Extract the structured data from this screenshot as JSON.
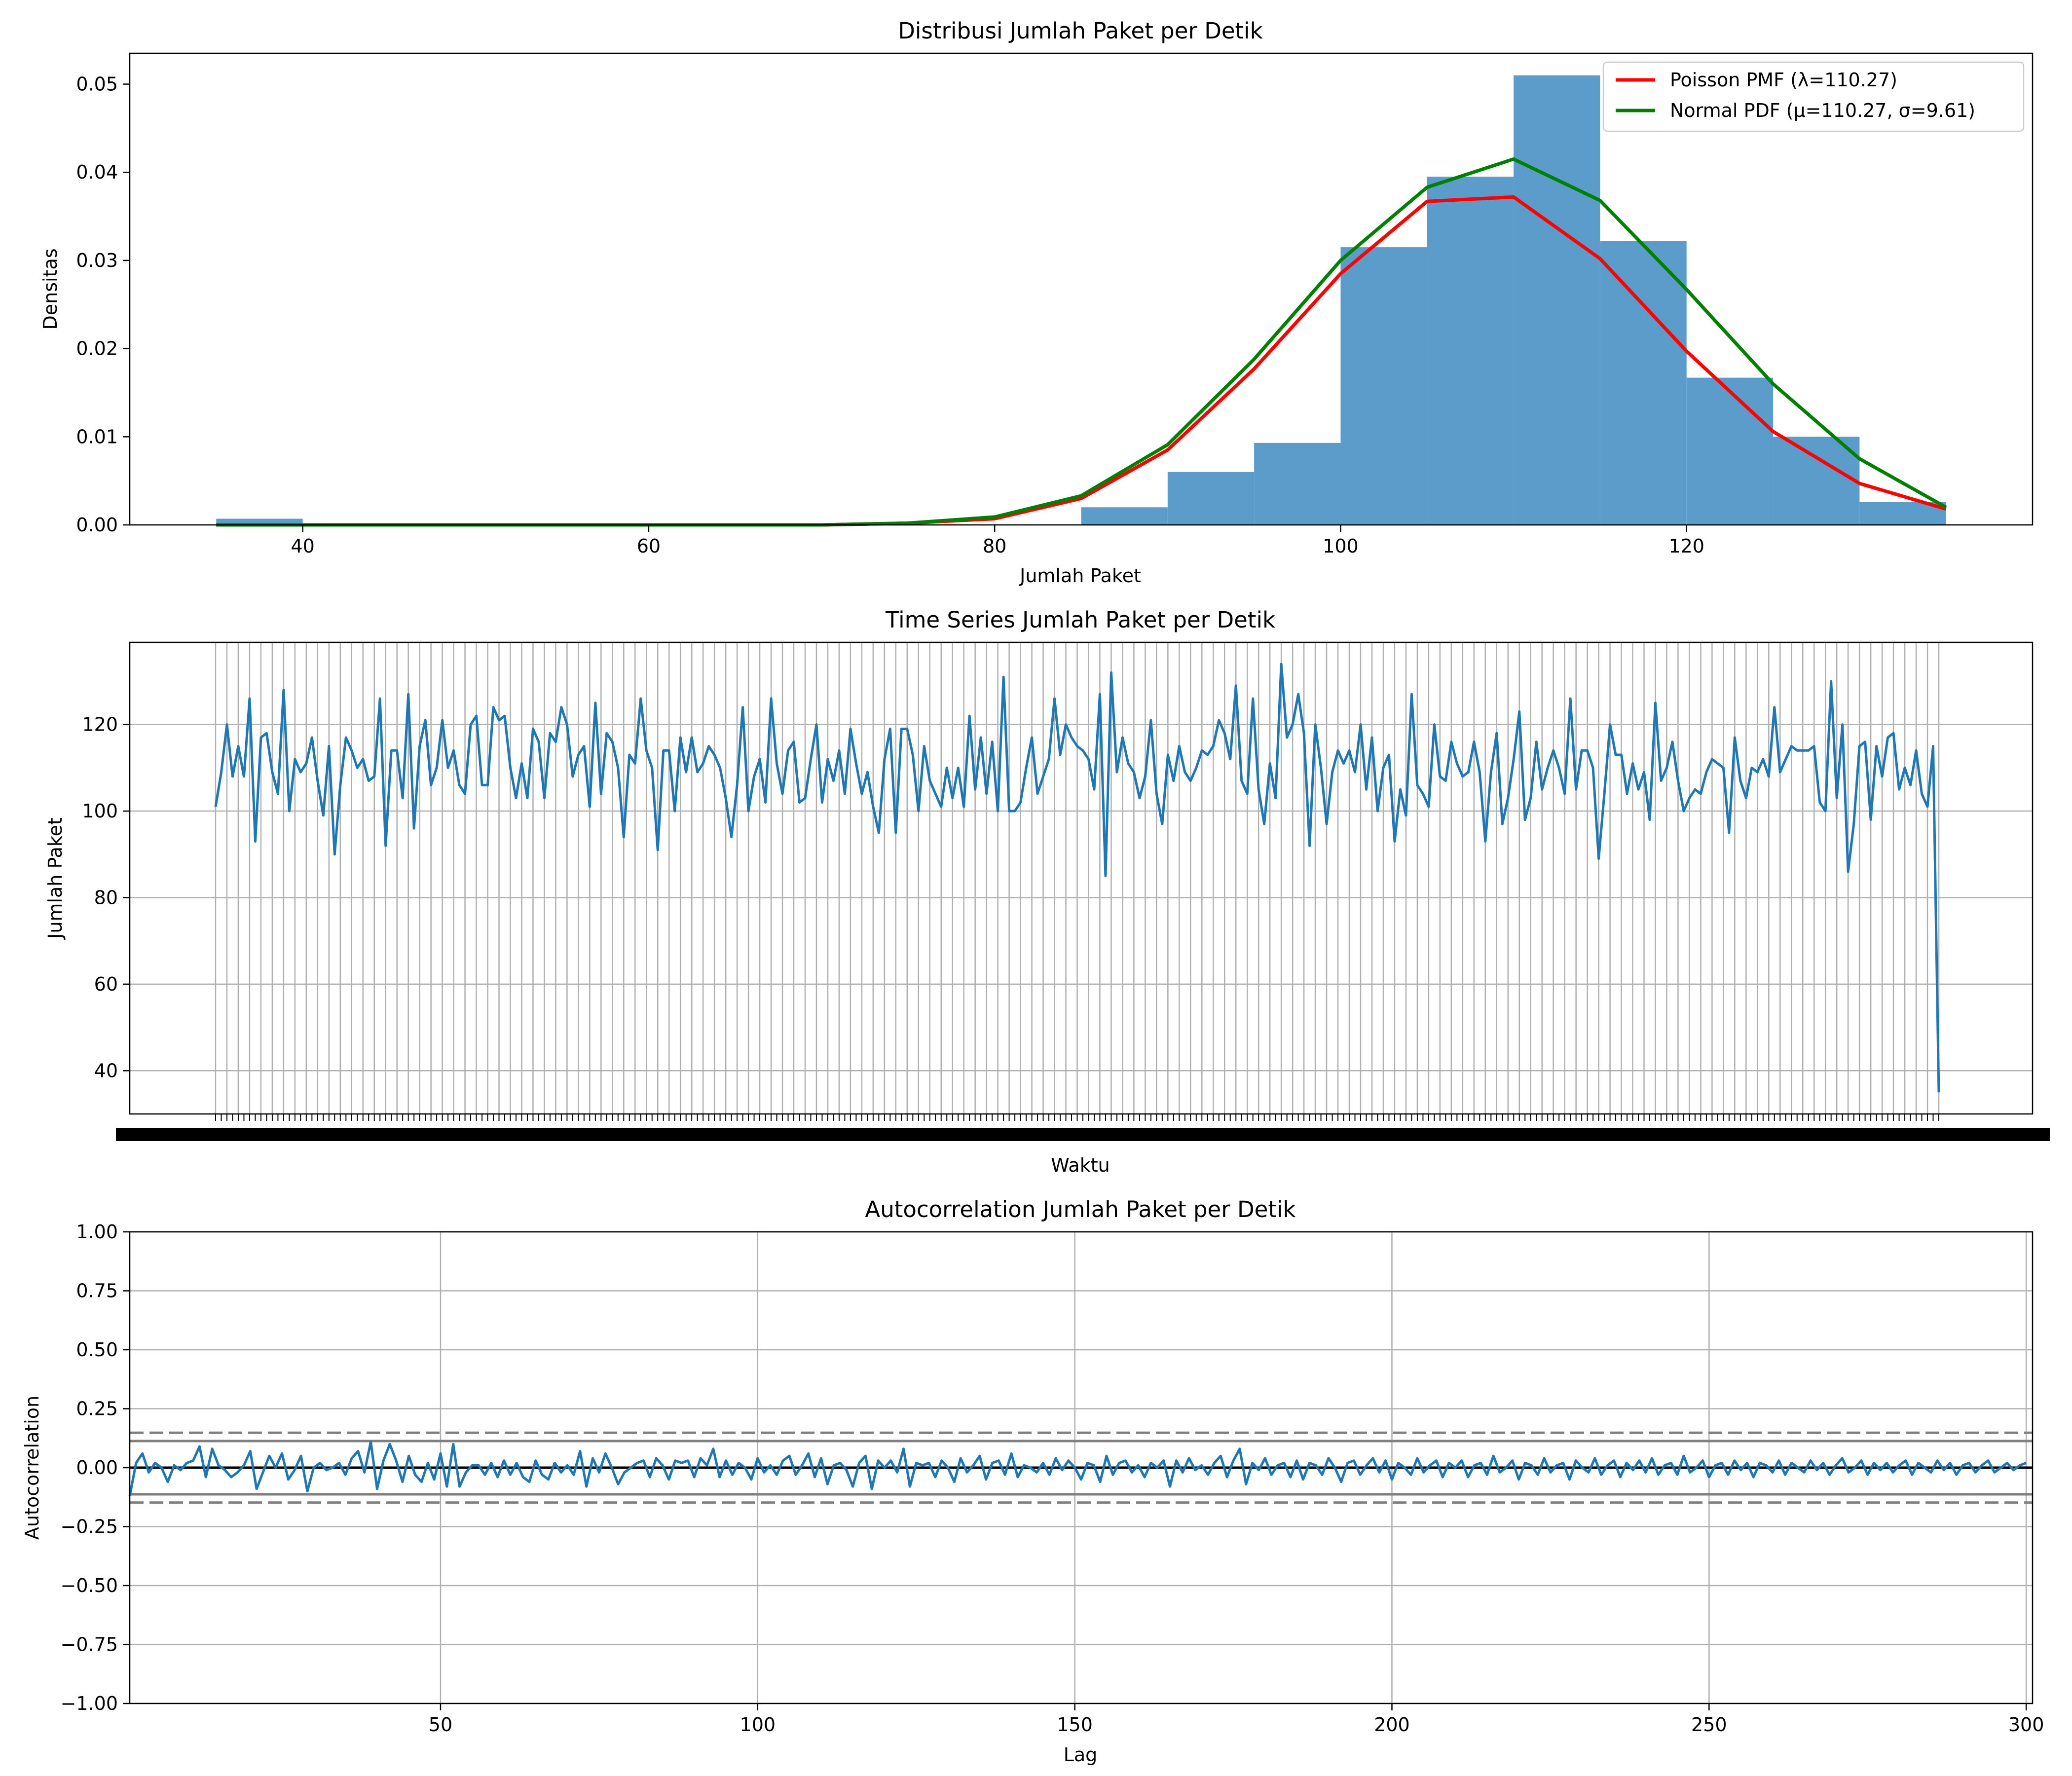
{
  "chart_data": [
    {
      "type": "bar",
      "title": "Distribusi Jumlah Paket per Detik",
      "xlabel": "Jumlah Paket",
      "ylabel": "Densitas",
      "xlim": [
        30,
        140
      ],
      "ylim": [
        0,
        0.0535
      ],
      "xticks": [
        40,
        60,
        80,
        100,
        120
      ],
      "yticks": [
        0.0,
        0.01,
        0.02,
        0.03,
        0.04,
        0.05
      ],
      "ytick_labels": [
        "0.00",
        "0.01",
        "0.02",
        "0.03",
        "0.04",
        "0.05"
      ],
      "histogram": {
        "bin_edges": [
          35,
          40,
          45,
          50,
          55,
          60,
          65,
          70,
          75,
          80,
          85,
          90,
          95,
          100,
          105,
          110,
          115,
          120,
          125,
          130,
          135
        ],
        "densities": [
          0.0007,
          0,
          0,
          0,
          0,
          0,
          0,
          0,
          0,
          0,
          0.002,
          0.006,
          0.0093,
          0.0315,
          0.0395,
          0.051,
          0.0322,
          0.0167,
          0.01,
          0.0026
        ],
        "color": "#5b9ccb"
      },
      "series": [
        {
          "name": "Poisson PMF (λ=110.27)",
          "color": "#ff0000",
          "x": [
            35,
            40,
            45,
            50,
            55,
            60,
            65,
            70,
            75,
            80,
            85,
            90,
            95,
            100,
            105,
            110,
            115,
            120,
            125,
            130,
            135
          ],
          "y": [
            0,
            0,
            0,
            0,
            0,
            0,
            0,
            0,
            0.0002,
            0.0007,
            0.003,
            0.0085,
            0.0177,
            0.0285,
            0.0367,
            0.0372,
            0.0302,
            0.0197,
            0.0106,
            0.0047,
            0.0018
          ]
        },
        {
          "name": "Normal PDF (μ=110.27, σ=9.61)",
          "color": "#008000",
          "x": [
            35,
            40,
            45,
            50,
            55,
            60,
            65,
            70,
            75,
            80,
            85,
            90,
            95,
            100,
            105,
            110,
            115,
            120,
            125,
            130,
            135
          ],
          "y": [
            0,
            0,
            0,
            0,
            0,
            0,
            0,
            0,
            0.0002,
            0.0009,
            0.0033,
            0.0091,
            0.0188,
            0.03,
            0.0383,
            0.0415,
            0.0368,
            0.0267,
            0.016,
            0.0075,
            0.002
          ]
        }
      ],
      "legend": "top-right",
      "grid": false
    },
    {
      "type": "line",
      "title": "Time Series Jumlah Paket per Detik",
      "xlabel": "Waktu",
      "ylabel": "Jumlah Paket",
      "ylim": [
        30,
        139
      ],
      "yticks": [
        40,
        60,
        80,
        100,
        120
      ],
      "grid": true,
      "n_points": 301,
      "color": "#1f77b4",
      "values": [
        101,
        109,
        120,
        108,
        115,
        108,
        126,
        93,
        117,
        118,
        109,
        104,
        128,
        100,
        112,
        109,
        111,
        117,
        107,
        99,
        115,
        90,
        106,
        117,
        114,
        110,
        112,
        107,
        108,
        126,
        92,
        114,
        114,
        103,
        127,
        96,
        115,
        121,
        106,
        110,
        121,
        110,
        114,
        106,
        104,
        120,
        122,
        106,
        106,
        124,
        121,
        122,
        110,
        103,
        111,
        103,
        119,
        116,
        103,
        118,
        116,
        124,
        120,
        108,
        113,
        115,
        101,
        125,
        104,
        118,
        116,
        110,
        94,
        113,
        111,
        126,
        114,
        110,
        91,
        114,
        114,
        100,
        117,
        109,
        117,
        109,
        111,
        115,
        113,
        110,
        103,
        94,
        106,
        124,
        100,
        108,
        112,
        102,
        126,
        111,
        104,
        114,
        116,
        102,
        103,
        112,
        120,
        102,
        112,
        107,
        114,
        104,
        119,
        111,
        104,
        109,
        101,
        95,
        112,
        119,
        95,
        119,
        119,
        113,
        100,
        115,
        107,
        104,
        101,
        110,
        103,
        110,
        101,
        122,
        105,
        117,
        104,
        116,
        100,
        131,
        100,
        100,
        102,
        110,
        117,
        104,
        108,
        112,
        126,
        113,
        120,
        117,
        115,
        114,
        112,
        105,
        127,
        85,
        132,
        109,
        117,
        111,
        109,
        103,
        108,
        121,
        104,
        97,
        113,
        107,
        115,
        109,
        107,
        110,
        114,
        113,
        115,
        121,
        118,
        112,
        129,
        107,
        104,
        126,
        105,
        97,
        111,
        103,
        134,
        117,
        120,
        127,
        118,
        92,
        120,
        110,
        97,
        109,
        114,
        111,
        114,
        109,
        120,
        105,
        117,
        100,
        110,
        113,
        93,
        105,
        99,
        127,
        106,
        104,
        101,
        120,
        108,
        107,
        116,
        111,
        108,
        109,
        116,
        109,
        93,
        109,
        118,
        97,
        103,
        112,
        123,
        98,
        103,
        116,
        105,
        110,
        114,
        110,
        104,
        126,
        105,
        114,
        114,
        110,
        89,
        104,
        120,
        113,
        113,
        104,
        111,
        105,
        109,
        98,
        125,
        107,
        110,
        116,
        107,
        100,
        103,
        105,
        104,
        109,
        112,
        111,
        110,
        95,
        117,
        107,
        103,
        110,
        109,
        112,
        108,
        124,
        109,
        112,
        115,
        114,
        114,
        114,
        115,
        102,
        100,
        130,
        103,
        120,
        86,
        97,
        115,
        116,
        98,
        115,
        108,
        117,
        118,
        105,
        110,
        106,
        114,
        104,
        101,
        115,
        35
      ],
      "xtick_labels": "dense overlapping timestamp labels (unreadable)"
    },
    {
      "type": "line",
      "title": "Autocorrelation Jumlah Paket per Detik",
      "xlabel": "Lag",
      "ylabel": "Autocorrelation",
      "xlim": [
        1,
        301
      ],
      "ylim": [
        -1.0,
        1.0
      ],
      "xticks": [
        50,
        100,
        150,
        200,
        250,
        300
      ],
      "yticks": [
        -1.0,
        -0.75,
        -0.5,
        -0.25,
        0.0,
        0.25,
        0.5,
        0.75,
        1.0
      ],
      "ytick_labels": [
        "−1.00",
        "−0.75",
        "−0.50",
        "−0.25",
        "0.00",
        "0.25",
        "0.50",
        "0.75",
        "1.00"
      ],
      "grid": true,
      "color": "#1f77b4",
      "confidence_lines": {
        "solid": [
          0.113,
          -0.113
        ],
        "dashed": [
          0.148,
          -0.148
        ]
      },
      "values": [
        -0.12,
        0.02,
        0.06,
        -0.02,
        0.02,
        0.0,
        -0.06,
        0.01,
        -0.01,
        0.02,
        0.03,
        0.09,
        -0.04,
        0.08,
        0.01,
        -0.01,
        -0.04,
        -0.02,
        0.01,
        0.07,
        -0.09,
        -0.02,
        0.05,
        0.0,
        0.06,
        -0.05,
        -0.01,
        0.05,
        -0.1,
        0.0,
        0.02,
        -0.01,
        0.0,
        0.02,
        -0.03,
        0.04,
        0.07,
        -0.02,
        0.11,
        -0.09,
        0.03,
        0.1,
        0.03,
        -0.06,
        0.05,
        -0.03,
        -0.06,
        0.02,
        -0.05,
        0.06,
        -0.08,
        0.1,
        -0.08,
        -0.02,
        0.01,
        0.01,
        -0.03,
        0.02,
        -0.04,
        0.03,
        -0.03,
        0.02,
        -0.04,
        -0.06,
        0.03,
        -0.03,
        -0.05,
        0.02,
        -0.02,
        0.01,
        -0.03,
        0.07,
        -0.08,
        0.04,
        -0.02,
        0.06,
        0.0,
        -0.07,
        -0.02,
        0.0,
        0.02,
        0.03,
        -0.04,
        0.04,
        0.01,
        -0.05,
        0.03,
        0.02,
        0.03,
        -0.04,
        0.04,
        0.01,
        0.08,
        -0.04,
        0.03,
        -0.03,
        0.02,
        0.0,
        -0.05,
        0.04,
        -0.02,
        0.01,
        -0.03,
        0.03,
        0.05,
        -0.03,
        0.01,
        0.06,
        -0.04,
        0.04,
        -0.07,
        0.01,
        0.02,
        -0.01,
        -0.08,
        0.02,
        0.05,
        -0.09,
        0.03,
        0.0,
        0.03,
        -0.02,
        0.08,
        -0.08,
        0.02,
        0.01,
        0.02,
        -0.04,
        0.03,
        0.0,
        -0.06,
        0.04,
        -0.02,
        0.01,
        0.05,
        -0.05,
        0.02,
        0.03,
        -0.03,
        0.06,
        -0.04,
        0.01,
        0.0,
        -0.02,
        0.02,
        -0.03,
        0.04,
        -0.01,
        0.03,
        0.0,
        -0.05,
        0.02,
        0.01,
        -0.06,
        0.05,
        -0.03,
        0.02,
        0.03,
        -0.02,
        0.01,
        -0.04,
        0.02,
        0.0,
        0.03,
        -0.08,
        0.03,
        -0.02,
        0.04,
        -0.01,
        0.01,
        -0.03,
        0.02,
        0.05,
        -0.04,
        0.03,
        0.08,
        -0.07,
        0.02,
        -0.01,
        0.04,
        -0.03,
        0.01,
        0.02,
        -0.04,
        0.03,
        -0.05,
        0.02,
        0.01,
        -0.03,
        0.04,
        0.0,
        -0.06,
        0.02,
        0.03,
        -0.03,
        0.01,
        0.04,
        -0.02,
        0.03,
        -0.05,
        0.02,
        0.0,
        -0.03,
        0.04,
        -0.02,
        0.01,
        0.03,
        -0.04,
        0.02,
        0.0,
        0.03,
        -0.04,
        0.01,
        0.02,
        -0.03,
        0.05,
        -0.02,
        0.0,
        0.03,
        -0.05,
        0.02,
        0.01,
        -0.03,
        0.04,
        -0.02,
        0.01,
        0.02,
        -0.05,
        0.03,
        0.0,
        -0.02,
        0.04,
        -0.03,
        0.01,
        0.03,
        -0.04,
        0.02,
        -0.01,
        0.03,
        -0.02,
        0.04,
        -0.03,
        0.01,
        0.02,
        -0.03,
        0.05,
        -0.02,
        0.0,
        0.03,
        -0.04,
        0.01,
        0.02,
        -0.03,
        0.03,
        -0.01,
        0.02,
        -0.04,
        0.02,
        0.01,
        -0.02,
        0.03,
        -0.03,
        0.02,
        0.0,
        -0.02,
        0.03,
        -0.01,
        0.02,
        -0.03,
        0.01,
        0.04,
        -0.02,
        0.0,
        0.03,
        -0.03,
        0.02,
        -0.01,
        0.02,
        -0.02,
        0.01,
        0.03,
        -0.03,
        0.02,
        0.0,
        -0.02,
        0.03,
        -0.01,
        0.02,
        -0.03,
        0.01,
        0.02,
        -0.02,
        0.01,
        0.03,
        -0.02,
        0.0,
        0.02,
        -0.01,
        0.01,
        0.02
      ]
    }
  ]
}
